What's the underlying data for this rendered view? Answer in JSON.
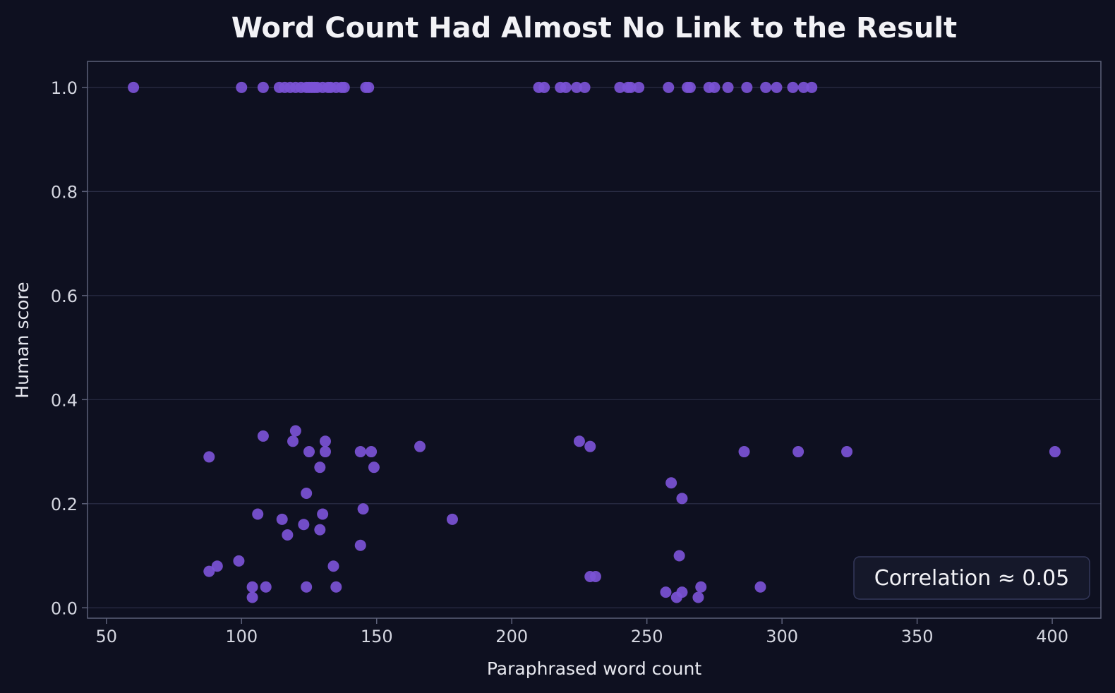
{
  "chart_data": {
    "type": "scatter",
    "title": "Word Count Had Almost No Link to the Result",
    "xlabel": "Paraphrased word count",
    "ylabel": "Human score",
    "xlim": [
      43,
      418
    ],
    "ylim": [
      -0.02,
      1.05
    ],
    "xticks": [
      50,
      100,
      150,
      200,
      250,
      300,
      350,
      400
    ],
    "xtick_labels": [
      "50",
      "100",
      "150",
      "200",
      "250",
      "300",
      "350",
      "400"
    ],
    "yticks": [
      0.0,
      0.2,
      0.4,
      0.6,
      0.8,
      1.0
    ],
    "ytick_labels": [
      "0.0",
      "0.2",
      "0.4",
      "0.6",
      "0.8",
      "1.0"
    ],
    "grid": "horizontal",
    "annotation": "Correlation ≈ 0.05",
    "annotation_position": "bottom-right",
    "colors": {
      "background": "#0e1020",
      "point": "#7b52d6",
      "grid": "#2a2d45",
      "spine": "#5c6078",
      "annotation_bg": "#15182a",
      "annotation_border": "#34385a"
    },
    "points": [
      {
        "x": 60,
        "y": 1.0
      },
      {
        "x": 100,
        "y": 1.0
      },
      {
        "x": 108,
        "y": 1.0
      },
      {
        "x": 114,
        "y": 1.0
      },
      {
        "x": 116,
        "y": 1.0
      },
      {
        "x": 118,
        "y": 1.0
      },
      {
        "x": 120,
        "y": 1.0
      },
      {
        "x": 122,
        "y": 1.0
      },
      {
        "x": 124,
        "y": 1.0
      },
      {
        "x": 125,
        "y": 1.0
      },
      {
        "x": 126,
        "y": 1.0
      },
      {
        "x": 127,
        "y": 1.0
      },
      {
        "x": 128,
        "y": 1.0
      },
      {
        "x": 130,
        "y": 1.0
      },
      {
        "x": 132,
        "y": 1.0
      },
      {
        "x": 133,
        "y": 1.0
      },
      {
        "x": 135,
        "y": 1.0
      },
      {
        "x": 137,
        "y": 1.0
      },
      {
        "x": 138,
        "y": 1.0
      },
      {
        "x": 146,
        "y": 1.0
      },
      {
        "x": 147,
        "y": 1.0
      },
      {
        "x": 210,
        "y": 1.0
      },
      {
        "x": 212,
        "y": 1.0
      },
      {
        "x": 218,
        "y": 1.0
      },
      {
        "x": 220,
        "y": 1.0
      },
      {
        "x": 224,
        "y": 1.0
      },
      {
        "x": 227,
        "y": 1.0
      },
      {
        "x": 240,
        "y": 1.0
      },
      {
        "x": 243,
        "y": 1.0
      },
      {
        "x": 244,
        "y": 1.0
      },
      {
        "x": 247,
        "y": 1.0
      },
      {
        "x": 258,
        "y": 1.0
      },
      {
        "x": 265,
        "y": 1.0
      },
      {
        "x": 266,
        "y": 1.0
      },
      {
        "x": 273,
        "y": 1.0
      },
      {
        "x": 275,
        "y": 1.0
      },
      {
        "x": 280,
        "y": 1.0
      },
      {
        "x": 287,
        "y": 1.0
      },
      {
        "x": 294,
        "y": 1.0
      },
      {
        "x": 298,
        "y": 1.0
      },
      {
        "x": 304,
        "y": 1.0
      },
      {
        "x": 308,
        "y": 1.0
      },
      {
        "x": 311,
        "y": 1.0
      },
      {
        "x": 88,
        "y": 0.29
      },
      {
        "x": 108,
        "y": 0.33
      },
      {
        "x": 119,
        "y": 0.32
      },
      {
        "x": 120,
        "y": 0.34
      },
      {
        "x": 125,
        "y": 0.3
      },
      {
        "x": 131,
        "y": 0.32
      },
      {
        "x": 131,
        "y": 0.3
      },
      {
        "x": 129,
        "y": 0.27
      },
      {
        "x": 144,
        "y": 0.3
      },
      {
        "x": 148,
        "y": 0.3
      },
      {
        "x": 149,
        "y": 0.27
      },
      {
        "x": 166,
        "y": 0.31
      },
      {
        "x": 124,
        "y": 0.22
      },
      {
        "x": 106,
        "y": 0.18
      },
      {
        "x": 115,
        "y": 0.17
      },
      {
        "x": 130,
        "y": 0.18
      },
      {
        "x": 145,
        "y": 0.19
      },
      {
        "x": 117,
        "y": 0.14
      },
      {
        "x": 123,
        "y": 0.16
      },
      {
        "x": 129,
        "y": 0.15
      },
      {
        "x": 178,
        "y": 0.17
      },
      {
        "x": 144,
        "y": 0.12
      },
      {
        "x": 88,
        "y": 0.07
      },
      {
        "x": 91,
        "y": 0.08
      },
      {
        "x": 99,
        "y": 0.09
      },
      {
        "x": 104,
        "y": 0.04
      },
      {
        "x": 104,
        "y": 0.02
      },
      {
        "x": 109,
        "y": 0.04
      },
      {
        "x": 124,
        "y": 0.04
      },
      {
        "x": 134,
        "y": 0.08
      },
      {
        "x": 135,
        "y": 0.04
      },
      {
        "x": 225,
        "y": 0.32
      },
      {
        "x": 229,
        "y": 0.31
      },
      {
        "x": 229,
        "y": 0.06
      },
      {
        "x": 231,
        "y": 0.06
      },
      {
        "x": 259,
        "y": 0.24
      },
      {
        "x": 263,
        "y": 0.21
      },
      {
        "x": 262,
        "y": 0.1
      },
      {
        "x": 257,
        "y": 0.03
      },
      {
        "x": 261,
        "y": 0.02
      },
      {
        "x": 263,
        "y": 0.03
      },
      {
        "x": 269,
        "y": 0.02
      },
      {
        "x": 270,
        "y": 0.04
      },
      {
        "x": 286,
        "y": 0.3
      },
      {
        "x": 292,
        "y": 0.04
      },
      {
        "x": 306,
        "y": 0.3
      },
      {
        "x": 324,
        "y": 0.3
      },
      {
        "x": 401,
        "y": 0.3
      }
    ]
  }
}
